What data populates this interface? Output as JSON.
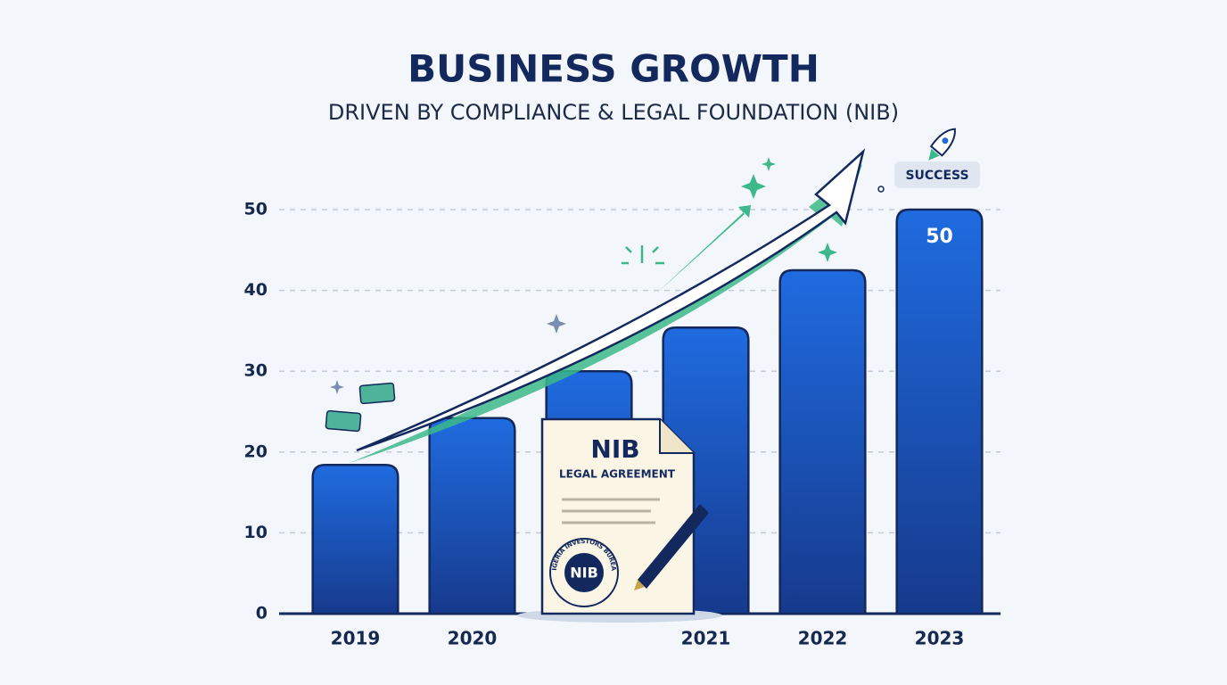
{
  "chart_data": {
    "type": "bar",
    "title": "BUSINESS GROWTH",
    "subtitle": "DRIVEN BY COMPLIANCE & LEGAL FOUNDATION (NIB)",
    "categories": [
      "2019",
      "2020",
      null,
      "2021",
      "2022",
      "2023"
    ],
    "values": [
      18.4,
      24.2,
      30,
      35.4,
      42.5,
      50
    ],
    "value_labels": [
      null,
      null,
      null,
      null,
      null,
      "50"
    ],
    "color": "#1f5fc4",
    "ylim": [
      0,
      50
    ],
    "yticks": [
      0,
      10,
      20,
      30,
      40,
      50
    ],
    "grid": true,
    "annotations": {
      "badge": "SUCCESS",
      "document_title": "NIB",
      "document_subtitle": "LEGAL AGREEMENT",
      "seal_text": "NIGERIA INVESTORS BUREAU",
      "seal_label": "NIB"
    }
  }
}
